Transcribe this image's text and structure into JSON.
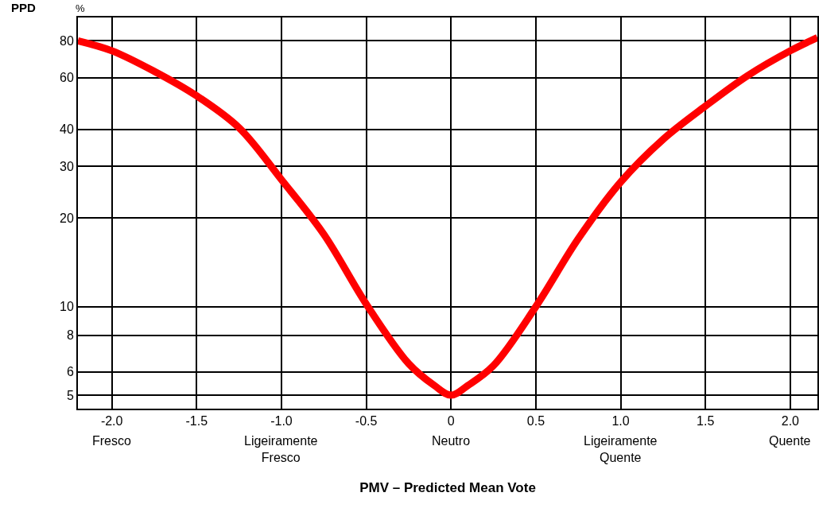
{
  "chart_data": {
    "type": "line",
    "xlabel": "PMV – Predicted Mean Vote",
    "ylabel": "PPD",
    "x": [
      -2.2,
      -2.0,
      -1.75,
      -1.5,
      -1.25,
      -1.0,
      -0.75,
      -0.5,
      -0.25,
      -0.1,
      0,
      0.1,
      0.25,
      0.5,
      0.75,
      1.0,
      1.25,
      1.5,
      1.75,
      2.0,
      2.16
    ],
    "series": [
      {
        "color": "#ff0000",
        "values": [
          80,
          74,
          63,
          52,
          40.5,
          27,
          17.6,
          10.2,
          6.4,
          5.4,
          5,
          5.4,
          6.3,
          10,
          17,
          26.5,
          37,
          48,
          61,
          74,
          82
        ]
      }
    ],
    "xlim": [
      -2.2,
      2.16
    ],
    "ylim": [
      4.5,
      96
    ],
    "log": true,
    "grid": true,
    "legend": false,
    "marker": "none",
    "line_style": "solid",
    "xticks": [
      {
        "value": -2,
        "label": "-2.0"
      },
      -1.5,
      {
        "value": -1,
        "label": "-1.0"
      },
      -0.5,
      0,
      0.5,
      {
        "value": 1,
        "label": "1.0"
      },
      1.5,
      {
        "value": 2,
        "label": "2.0"
      }
    ],
    "yticks": [
      5,
      6,
      8,
      10,
      20,
      30,
      40,
      60,
      80
    ],
    "annotations": [
      "%",
      "Fresco",
      "Ligeiramente Fresco",
      "Neutro",
      "Ligeiramente Quente",
      "Quente"
    ]
  }
}
